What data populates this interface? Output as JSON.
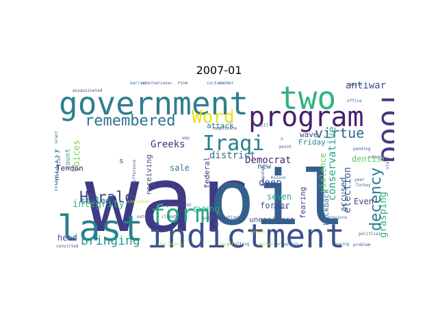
{
  "title": "2007-01",
  "colors": {
    "background": "#ffffff",
    "title": "#000000"
  },
  "words": [
    {
      "text": "war",
      "color": "#3f3a84"
    },
    {
      "text": "oil",
      "color": "#35608d"
    },
    {
      "text": "government",
      "color": "#2e7e8e"
    },
    {
      "text": "indictment",
      "color": "#3b528b"
    },
    {
      "text": "last",
      "color": "#277f8e"
    },
    {
      "text": "two",
      "color": "#2fb47c"
    },
    {
      "text": "program",
      "color": "#481f70"
    },
    {
      "text": "food",
      "color": "#443983"
    },
    {
      "text": "form",
      "color": "#25ab82"
    },
    {
      "text": "Iraqi",
      "color": "#287d8e"
    },
    {
      "text": "remembered",
      "color": "#2c728e"
    },
    {
      "text": "Word",
      "color": "#e2e418"
    },
    {
      "text": "Herald",
      "color": "#3e4989"
    },
    {
      "text": "bringing",
      "color": "#1f9e89"
    },
    {
      "text": "decency",
      "color": "#2a788e"
    },
    {
      "text": "virtue",
      "color": "#31688e"
    },
    {
      "text": "antiwar",
      "color": "#3d4d8a"
    },
    {
      "text": "election",
      "color": "#37598c"
    },
    {
      "text": "conservative",
      "color": "#22a884"
    },
    {
      "text": "kickback",
      "color": "#2c738e"
    },
    {
      "text": "accused",
      "color": "#3b528b"
    },
    {
      "text": "grasping",
      "color": "#2db27d"
    },
    {
      "text": "fearing",
      "color": "#443983"
    },
    {
      "text": "violence",
      "color": "#5ec962"
    },
    {
      "text": "Democrat",
      "color": "#482475"
    },
    {
      "text": "district",
      "color": "#31688e"
    },
    {
      "text": "integrity",
      "color": "#35b779"
    },
    {
      "text": "swung",
      "color": "#23a983"
    },
    {
      "text": "Greeks",
      "color": "#472c7a"
    },
    {
      "text": "humility",
      "color": "#2d718e"
    },
    {
      "text": "Voices",
      "color": "#7ad151"
    },
    {
      "text": "sealed",
      "color": "#31688e"
    },
    {
      "text": "receiving",
      "color": "#3e4a89"
    },
    {
      "text": "federal",
      "color": "#46307e"
    },
    {
      "text": "deep",
      "color": "#3b518b"
    },
    {
      "text": "seven",
      "color": "#22a785"
    },
    {
      "text": "former",
      "color": "#3e4989"
    },
    {
      "text": "uneasiness",
      "color": "#3a538b"
    },
    {
      "text": "Even",
      "color": "#414487"
    },
    {
      "text": "dentist",
      "color": "#5ec962"
    },
    {
      "text": "Friday",
      "color": "#24878e"
    },
    {
      "text": "wave",
      "color": "#3f4788"
    },
    {
      "text": "attack",
      "color": "#2a788e"
    },
    {
      "text": "new",
      "color": "#355f8d"
    },
    {
      "text": "sale",
      "color": "#2c738e"
    },
    {
      "text": "Tendon",
      "color": "#471365"
    },
    {
      "text": "count",
      "color": "#1f9e89"
    },
    {
      "text": "head",
      "color": "#3e4989"
    },
    {
      "text": "s",
      "color": "#414487"
    },
    {
      "text": "assassinated",
      "color": "#3b528b"
    },
    {
      "text": "barrier",
      "color": "#2c728e"
    },
    {
      "text": "international",
      "color": "#3b528b"
    },
    {
      "text": "Pink",
      "color": "#3e4989"
    },
    {
      "text": "cultural",
      "color": "#3b528b"
    },
    {
      "text": "warmer",
      "color": "#31688e"
    },
    {
      "text": "nation",
      "color": "#3b528b"
    },
    {
      "text": "office",
      "color": "#2c728e"
    },
    {
      "text": "charge",
      "color": "#3e4989"
    },
    {
      "text": "state",
      "color": "#3b528b"
    },
    {
      "text": "year",
      "color": "#3b528b"
    },
    {
      "text": "Turkey",
      "color": "#31688e"
    },
    {
      "text": "political",
      "color": "#3b528b"
    },
    {
      "text": "problem",
      "color": "#3b528b"
    },
    {
      "text": "showing",
      "color": "#2c728e"
    },
    {
      "text": "insulting",
      "color": "#3b528b"
    },
    {
      "text": "corruption",
      "color": "#2c728e"
    },
    {
      "text": "system",
      "color": "#b5de2b"
    },
    {
      "text": "sheriff",
      "color": "#b5de2b"
    },
    {
      "text": "continuing",
      "color": "#b5de2b"
    },
    {
      "text": "convicted",
      "color": "#3b528b"
    },
    {
      "text": "Negotiations",
      "color": "#3b528b"
    },
    {
      "text": "solution",
      "color": "#3e4989"
    },
    {
      "text": "outside",
      "color": "#3b528b"
    },
    {
      "text": "climate",
      "color": "#3b528b"
    },
    {
      "text": "province",
      "color": "#31688e"
    },
    {
      "text": "effort",
      "color": "#b5de2b"
    },
    {
      "text": "disputed",
      "color": "#3b528b"
    },
    {
      "text": "appointment",
      "color": "#3b528b"
    },
    {
      "text": "coalition",
      "color": "#b5de2b"
    },
    {
      "text": "difference",
      "color": "#3b528b"
    },
    {
      "text": "divide",
      "color": "#3b528b"
    },
    {
      "text": "find",
      "color": "#3b528b"
    },
    {
      "text": "Grant",
      "color": "#31688e"
    },
    {
      "text": "complicate",
      "color": "#3e4989"
    },
    {
      "text": "still",
      "color": "#3b528b"
    },
    {
      "text": "u",
      "color": "#3b528b"
    },
    {
      "text": "point",
      "color": "#3e4989"
    },
    {
      "text": "Kosovo",
      "color": "#31688e"
    },
    {
      "text": "Greece",
      "color": "#3b528b"
    },
    {
      "text": "pending",
      "color": "#3b528b"
    },
    {
      "text": "way",
      "color": "#3b528b"
    }
  ]
}
